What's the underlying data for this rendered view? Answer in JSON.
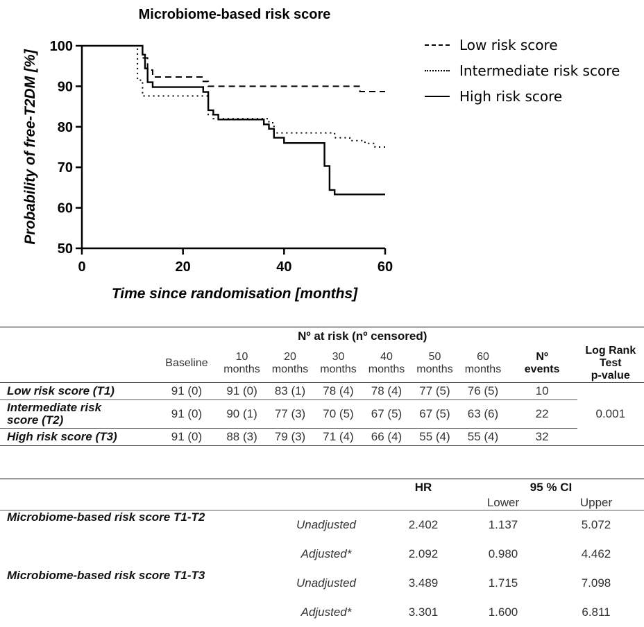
{
  "chart_data": {
    "type": "line",
    "title": "Microbiome-based risk score",
    "xlabel": "Time since randomisation [months]",
    "ylabel": "Probability of  free-T2DM [%]",
    "xlim": [
      0,
      60
    ],
    "ylim": [
      50,
      100
    ],
    "xticks": [
      "0",
      "20",
      "40",
      "60"
    ],
    "yticks": [
      "50",
      "60",
      "70",
      "80",
      "90",
      "100"
    ],
    "grid": false,
    "legend_position": "right",
    "series": [
      {
        "name": "Low risk score",
        "style": "dashed",
        "points": [
          [
            0,
            100
          ],
          [
            12,
            100
          ],
          [
            12,
            97
          ],
          [
            13,
            97
          ],
          [
            13,
            94
          ],
          [
            14,
            94
          ],
          [
            14,
            92.3
          ],
          [
            24,
            92.3
          ],
          [
            24,
            91.2
          ],
          [
            25,
            91.2
          ],
          [
            25,
            90
          ],
          [
            55,
            90
          ],
          [
            55,
            88.7
          ],
          [
            60,
            88.7
          ]
        ]
      },
      {
        "name": "Intermediate risk score",
        "style": "dotted",
        "points": [
          [
            0,
            100
          ],
          [
            11,
            100
          ],
          [
            11,
            91.5
          ],
          [
            12,
            91.5
          ],
          [
            12,
            87.6
          ],
          [
            25,
            87.6
          ],
          [
            25,
            83
          ],
          [
            26,
            83
          ],
          [
            26,
            82
          ],
          [
            37,
            82
          ],
          [
            37,
            81
          ],
          [
            38,
            81
          ],
          [
            38,
            78.5
          ],
          [
            50,
            78.5
          ],
          [
            50,
            77.3
          ],
          [
            53,
            77.3
          ],
          [
            53,
            76.6
          ],
          [
            56,
            76.6
          ],
          [
            56,
            75.9
          ],
          [
            58,
            75.9
          ],
          [
            58,
            75
          ],
          [
            60,
            75
          ]
        ]
      },
      {
        "name": "High risk score",
        "style": "solid",
        "points": [
          [
            0,
            100
          ],
          [
            12,
            100
          ],
          [
            12,
            97.8
          ],
          [
            12.5,
            97.8
          ],
          [
            12.5,
            94.4
          ],
          [
            13,
            94.4
          ],
          [
            13,
            91
          ],
          [
            14,
            91
          ],
          [
            14,
            89.8
          ],
          [
            24,
            89.8
          ],
          [
            24,
            88.6
          ],
          [
            25,
            88.6
          ],
          [
            25,
            84.1
          ],
          [
            26,
            84.1
          ],
          [
            26,
            83
          ],
          [
            27,
            83
          ],
          [
            27,
            81.8
          ],
          [
            36,
            81.8
          ],
          [
            36,
            80.6
          ],
          [
            37,
            80.6
          ],
          [
            37,
            79.5
          ],
          [
            38,
            79.5
          ],
          [
            38,
            77.3
          ],
          [
            40,
            77.3
          ],
          [
            40,
            76
          ],
          [
            48,
            76
          ],
          [
            48,
            70.3
          ],
          [
            49,
            70.3
          ],
          [
            49,
            64.4
          ],
          [
            50,
            64.4
          ],
          [
            50,
            63.3
          ],
          [
            60,
            63.3
          ]
        ]
      }
    ]
  },
  "risk_table": {
    "group_header": "Nº at risk (nº censored)",
    "columns": [
      "Baseline",
      "10 months",
      "20 months",
      "30 months",
      "40 months",
      "50 months",
      "60 months"
    ],
    "col_10": [
      "10",
      "months"
    ],
    "col_20": [
      "20",
      "months"
    ],
    "col_30": [
      "30",
      "months"
    ],
    "col_40": [
      "40",
      "months"
    ],
    "col_50": [
      "50",
      "months"
    ],
    "col_60": [
      "60",
      "months"
    ],
    "events_header": [
      "Nº",
      "events"
    ],
    "logrank_header": [
      "Log Rank",
      "Test",
      "p-value"
    ],
    "logrank_value": "0.001",
    "rows": [
      {
        "label": "Low risk score (T1)",
        "values": [
          "91 (0)",
          "91 (0)",
          "83 (1)",
          "78 (4)",
          "78 (4)",
          "77 (5)",
          "76 (5)"
        ],
        "events": "10"
      },
      {
        "label_1": "Intermediate risk",
        "label_2": "score (T2)",
        "values": [
          "91 (0)",
          "90 (1)",
          "77 (3)",
          "70 (5)",
          "67 (5)",
          "67 (5)",
          "63 (6)"
        ],
        "events": "22"
      },
      {
        "label": "High risk score (T3)",
        "values": [
          "91 (0)",
          "88 (3)",
          "79 (3)",
          "71 (4)",
          "66 (4)",
          "55 (4)",
          "55 (4)"
        ],
        "events": "32"
      }
    ]
  },
  "hr_table": {
    "hr_header": "HR",
    "ci_header": "95 % CI",
    "lower_header": "Lower",
    "upper_header": "Upper",
    "comparisons": [
      {
        "label": "Microbiome-based risk score T1-T2",
        "rows": [
          {
            "type": "Unadjusted",
            "hr": "2.402",
            "lower": "1.137",
            "upper": "5.072"
          },
          {
            "type": "Adjusted*",
            "hr": "2.092",
            "lower": "0.980",
            "upper": "4.462"
          }
        ]
      },
      {
        "label": "Microbiome-based risk score T1-T3",
        "rows": [
          {
            "type": "Unadjusted",
            "hr": "3.489",
            "lower": "1.715",
            "upper": "7.098"
          },
          {
            "type": "Adjusted*",
            "hr": "3.301",
            "lower": "1.600",
            "upper": "6.811"
          }
        ]
      }
    ]
  }
}
